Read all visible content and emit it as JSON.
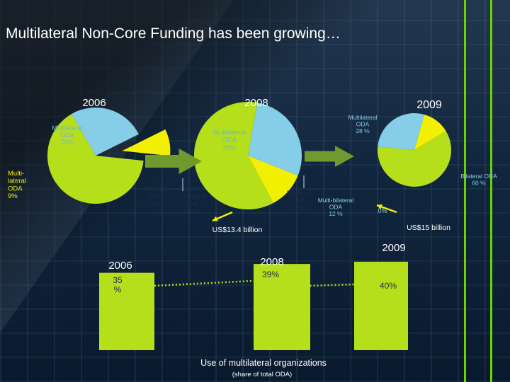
{
  "title": "Multilateral Non-Core Funding has been growing…",
  "colors": {
    "bilateral": "#b5df1b",
    "multilateral": "#86cde8",
    "multibilateral": "#f2f000",
    "arrow": "#6f9a2e",
    "bar": "#b5df1b",
    "pie_label": "#6fb7d9",
    "dark_label": "#1a2f48"
  },
  "chart_data": [
    {
      "type": "pie",
      "year": "2006",
      "slices": [
        {
          "name": "Multilateral ODA",
          "label": "Multilateral\nODA\n26%",
          "value": 26,
          "color_key": "multilateral"
        },
        {
          "name": "Multi-lateral ODA",
          "label": "Multi-\nlateral\nODA\n9%",
          "value": 9,
          "color_key": "multibilateral"
        },
        {
          "name": "Bilateral ODA",
          "label": "Bilateral\nODA\n65%",
          "value": 65,
          "color_key": "bilateral"
        }
      ]
    },
    {
      "type": "pie",
      "year": "2008",
      "total": "US$13.4 billion",
      "slices": [
        {
          "name": "Multilateral ODA",
          "label": "Multilateral\nODA\n28%",
          "value": 28,
          "color_key": "multilateral"
        },
        {
          "name": "Multi-bilateral ODA",
          "label": "Multi-\nbilateral\nODA\n11%",
          "value": 11,
          "color_key": "multibilateral"
        },
        {
          "name": "Bilateral ODA",
          "label": "Bilateral\nODA\n60%",
          "value": 60,
          "color_key": "bilateral"
        }
      ]
    },
    {
      "type": "pie",
      "year": "2009",
      "total": "US$15 billion",
      "slices": [
        {
          "name": "Multilateral ODA",
          "label": "Multilateral\nODA\n28 %",
          "value": 28,
          "color_key": "multilateral"
        },
        {
          "name": "Multi-bilateral ODA",
          "label": "Multi-bilateral\nODA\n12 %",
          "value": 12,
          "color_key": "multibilateral"
        },
        {
          "name": "Bilateral ODA",
          "label": "Bilateral ODA\n60 %",
          "value": 60,
          "color_key": "bilateral"
        }
      ],
      "extra_label": "0%"
    },
    {
      "type": "bar",
      "categories": [
        "2006",
        "2008",
        "2009"
      ],
      "values": [
        35,
        39,
        40
      ],
      "value_labels": [
        "35\n%",
        "39%",
        "40%"
      ],
      "xlabel": "Use of multilateral organizations",
      "xsublabel": "(share of total ODA)",
      "ylim": [
        0,
        40
      ]
    }
  ]
}
